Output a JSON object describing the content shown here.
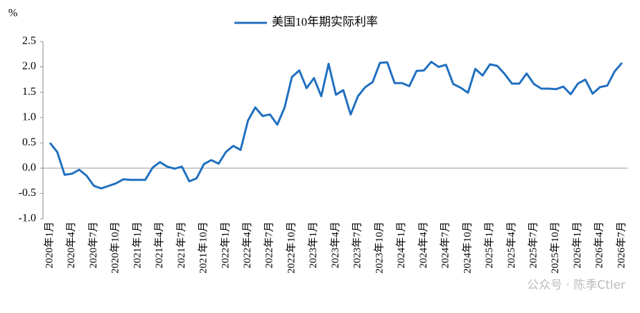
{
  "chart_data": {
    "type": "line",
    "y_label": "%",
    "categories": [
      "2020年1月",
      null,
      null,
      "2020年4月",
      null,
      null,
      "2020年7月",
      null,
      null,
      "2020年10月",
      null,
      null,
      "2021年1月",
      null,
      null,
      "2021年4月",
      null,
      null,
      "2021年7月",
      null,
      null,
      "2021年10月",
      null,
      null,
      "2022年1月",
      null,
      null,
      "2022年4月",
      null,
      null,
      "2022年7月",
      null,
      null,
      "2022年10月",
      null,
      null,
      "2023年1月",
      null,
      null,
      "2023年4月",
      null,
      null,
      "2023年7月",
      null,
      null,
      "2023年10月",
      null,
      null,
      "2024年1月",
      null,
      null,
      "2024年4月",
      null,
      null,
      "2024年7月",
      null,
      null,
      "2024年10月",
      null,
      null,
      "2025年1月",
      null,
      null,
      "2025年4月",
      null,
      null,
      "2025年7月",
      null,
      null,
      "2025年10月",
      null,
      null,
      "2026年1月",
      null,
      null,
      "2026年4月",
      null,
      null,
      "2026年7月"
    ],
    "series": [
      {
        "name": "美国10年期实际利率",
        "color": "#1f6fc0",
        "values": [
          0.5,
          0.32,
          -0.13,
          -0.11,
          -0.03,
          -0.15,
          -0.35,
          -0.4,
          -0.35,
          -0.3,
          -0.22,
          -0.23,
          -0.23,
          -0.23,
          0.01,
          0.12,
          0.03,
          -0.01,
          0.03,
          -0.26,
          -0.2,
          0.08,
          0.16,
          0.09,
          0.32,
          0.44,
          0.36,
          0.94,
          1.2,
          1.03,
          1.06,
          0.86,
          1.2,
          1.8,
          1.93,
          1.58,
          1.78,
          1.42,
          2.06,
          1.45,
          1.54,
          1.06,
          1.42,
          1.6,
          1.7,
          2.08,
          2.09,
          1.68,
          1.68,
          1.62,
          1.92,
          1.93,
          2.1,
          2.0,
          2.04,
          1.66,
          1.59,
          1.49,
          1.96,
          1.83,
          2.05,
          2.02,
          1.86,
          1.67,
          1.67,
          1.87,
          1.66,
          1.57,
          1.57,
          1.56,
          1.61,
          1.46,
          1.67,
          1.75,
          1.47,
          1.6,
          1.63,
          1.91,
          2.08
        ]
      }
    ],
    "ylim": [
      -1,
      2.5
    ],
    "yticks": [
      {
        "value": 2.5,
        "label": "2.5"
      },
      {
        "value": 2,
        "label": "2.0"
      },
      {
        "value": 1.5,
        "label": "1.5"
      },
      {
        "value": 1,
        "label": "1.0"
      },
      {
        "value": 0.5,
        "label": "0.5"
      },
      {
        "value": 0,
        "label": "0.0"
      },
      {
        "value": -0.5,
        "label": "-0.5"
      },
      {
        "value": -1,
        "label": "-1.0"
      }
    ],
    "zero_line": true,
    "legend": "top",
    "watermark": "公众号 · 陈季Ctler"
  }
}
